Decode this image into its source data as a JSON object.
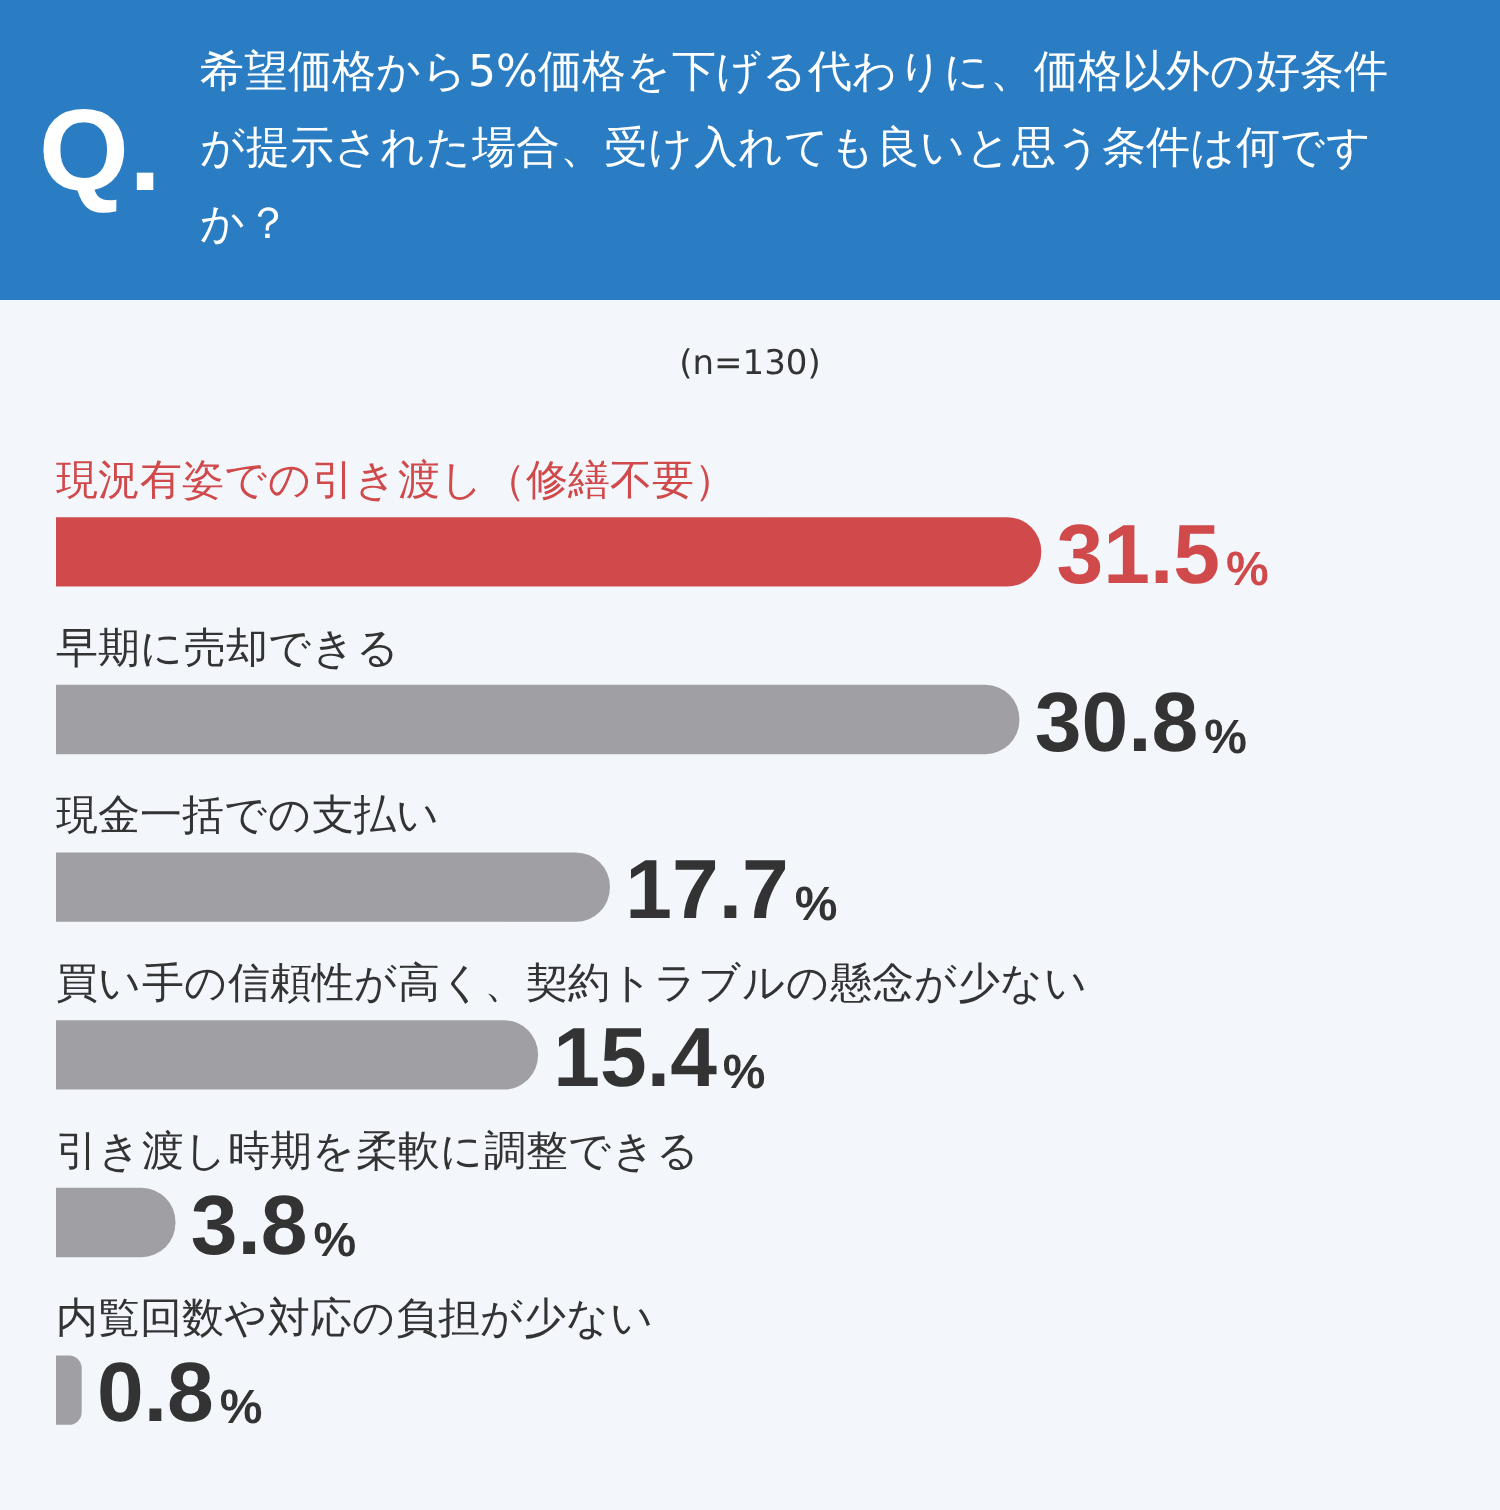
{
  "chart_data": {
    "type": "bar",
    "orientation": "horizontal",
    "title": "希望価格から5%価格を下げる代わりに、価格以外の好条件が提示された場合、受け入れても良いと思う条件は何ですか？",
    "subtitle": "(n=130)",
    "annotations": [
      "Q."
    ],
    "categories": [
      "現況有姿での引き渡し（修繕不要）",
      "早期に売却できる",
      "現金一括での支払い",
      "買い手の信頼性が高く、契約トラブルの懸念が少ない",
      "引き渡し時期を柔軟に調整できる",
      "内覧回数や対応の負担が少ない"
    ],
    "values": [
      31.5,
      30.8,
      17.7,
      15.4,
      3.8,
      0.8
    ],
    "colors": [
      "#d0494b",
      "#a0a0a4",
      "#a0a0a4",
      "#a0a0a4",
      "#a0a0a4",
      "#a0a0a4"
    ],
    "value_labels": [
      "31.5%",
      "30.8%",
      "17.7%",
      "15.4%",
      "3.8%",
      "0.8%"
    ],
    "legend": false
  }
}
